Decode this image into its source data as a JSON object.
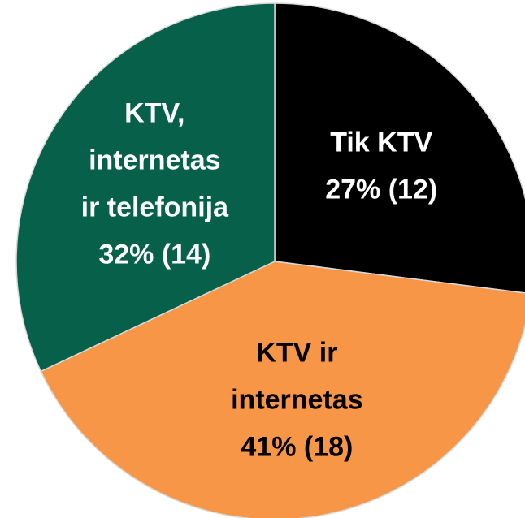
{
  "chart_data": {
    "type": "pie",
    "categories": [
      [
        "Tik KTV"
      ],
      [
        "KTV ir",
        "internetas"
      ],
      [
        "KTV,",
        "internetas",
        "ir telefonija"
      ]
    ],
    "values": [
      27,
      41,
      32
    ],
    "value_labels": [
      "27% (12)",
      "41% (18)",
      "32% (14)"
    ],
    "colors": [
      "#000000",
      "#f79646",
      "#07614a"
    ],
    "label_colors": [
      "#ffffff",
      "#000000",
      "#ffffff"
    ]
  }
}
